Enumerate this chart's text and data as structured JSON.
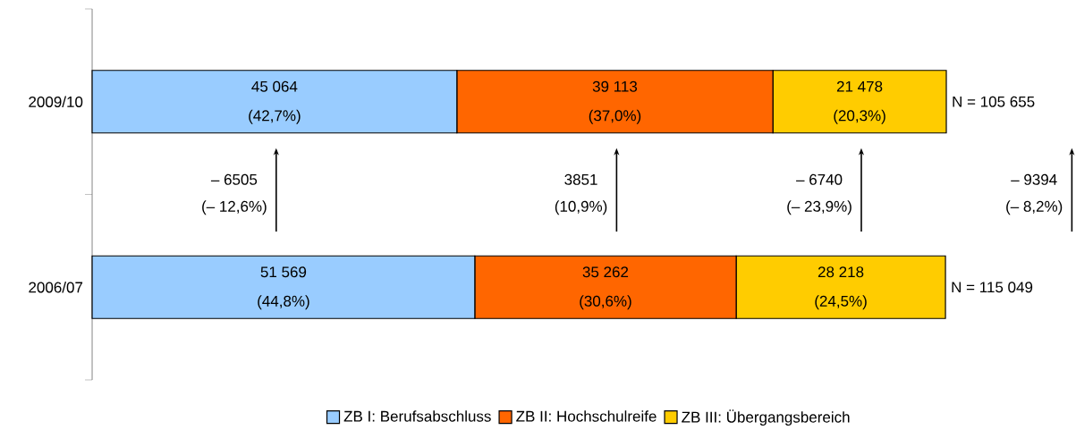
{
  "chart_data": {
    "type": "bar",
    "orientation": "horizontal",
    "stacked": true,
    "legend": "bottom",
    "categories": [
      "2009/10",
      "2006/07"
    ],
    "series": [
      {
        "name": "ZB I: Berufsabschluss",
        "color": "#99ccff",
        "values": [
          42.7,
          44.8
        ],
        "value_labels": [
          "(42,7%)",
          "(44,8%)"
        ]
      },
      {
        "name": "ZB II: Hochschulreife",
        "color": "#ff6600",
        "values": [
          37.0,
          30.6
        ],
        "value_labels": [
          "(37,0%)",
          "(30,6%)"
        ]
      },
      {
        "name": "ZB III: Übergangsbereich",
        "color": "#ffcc00",
        "values": [
          20.3,
          24.5
        ],
        "value_labels": [
          "(20,3%)",
          "(24,5%)"
        ]
      }
    ],
    "annotations": [
      "– 6505",
      "(– 12,6%)",
      "3851",
      "(10,9%)",
      "– 6740",
      "(– 23,9%)",
      "– 9394",
      "(– 8,2%)",
      "N = 105 655",
      "N = 115 049",
      "45 064",
      "39 113",
      "21 478",
      "51 569",
      "35 262",
      "28 218"
    ]
  }
}
